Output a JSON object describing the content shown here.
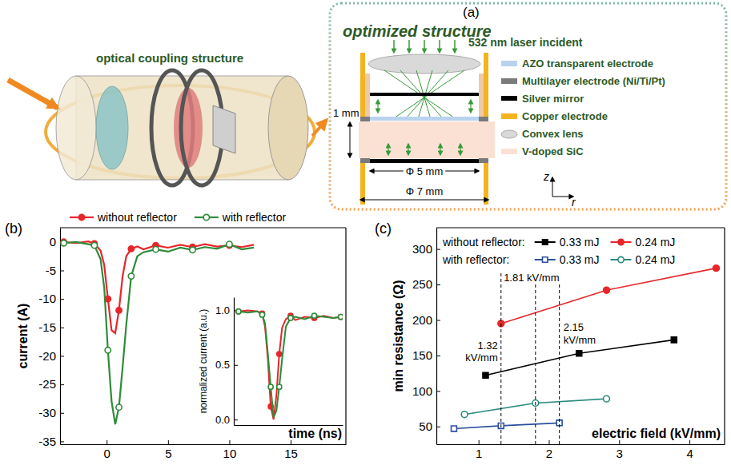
{
  "illustration": {
    "label": "optical coupling structure"
  },
  "diagram": {
    "label": "(a)",
    "title": "optimized structure",
    "laser_label": "532 nm laser incident",
    "legend": [
      {
        "label": "AZO transparent electrode",
        "color": "#b9d3ee"
      },
      {
        "label": "Multilayer electrode (Ni/Ti/Pt)",
        "color": "#7a7a7a"
      },
      {
        "label": "Silver mirror",
        "color": "#000000"
      },
      {
        "label": "Copper electrode",
        "color": "#f2b41f"
      },
      {
        "label": "Convex lens",
        "color": "#d9d9d9"
      },
      {
        "label": "V-doped SiC",
        "color": "#fbe1d4"
      }
    ],
    "thickness_label": "1 mm",
    "inner_diameter_label": "Φ 5 mm",
    "outer_diameter_label": "Φ 7 mm",
    "axis_labels": [
      "z",
      "r"
    ]
  },
  "chart_data": [
    {
      "type": "line",
      "panel": "(b)",
      "x_label": "time (ns)",
      "y_label": "current (A)",
      "xlim": [
        -3.8,
        19.5
      ],
      "xticks": [
        0,
        5,
        10,
        15
      ],
      "ylim": [
        -35.5,
        2.5
      ],
      "yticks": [
        0,
        -5,
        -10,
        -15,
        -20,
        -25,
        -30,
        -35
      ],
      "legend": "top",
      "series": [
        {
          "name": "without reflector",
          "color": "#e8262a",
          "marker": "circle",
          "x": [
            -3.5,
            -2.5,
            -1.5,
            -1,
            -0.5,
            -0.2,
            0.1,
            0.4,
            0.7,
            1,
            1.3,
            1.6,
            2,
            2.5,
            3,
            4,
            5,
            6,
            7,
            8,
            9,
            10,
            11,
            12
          ],
          "values": [
            0,
            -0.2,
            0.1,
            -0.3,
            -1.5,
            -4,
            -10,
            -15.5,
            -16,
            -12,
            -6,
            -2.5,
            -1.2,
            -0.8,
            -1.3,
            -0.6,
            -1,
            -0.5,
            -0.9,
            -0.4,
            -0.8,
            -0.6,
            -0.9,
            -0.5
          ]
        },
        {
          "name": "with reflector",
          "color": "#2e8b3a",
          "marker": "open-circle",
          "x": [
            -3.5,
            -2.5,
            -1.5,
            -1,
            -0.5,
            -0.2,
            0.1,
            0.4,
            0.7,
            1,
            1.3,
            1.6,
            2,
            2.5,
            3,
            4,
            5,
            6,
            7,
            8,
            9,
            10,
            11,
            12
          ],
          "values": [
            -0.2,
            0,
            -0.4,
            -0.6,
            -3,
            -8,
            -19,
            -28,
            -32,
            -29,
            -22,
            -14.5,
            -6,
            -2.5,
            -1.8,
            -1.3,
            -1.7,
            -1,
            -1.4,
            -0.9,
            -1.2,
            -0.4,
            -1.3,
            -1
          ]
        }
      ],
      "inset": {
        "type": "line",
        "y_label": "normalized current (a.u.)",
        "xlim": [
          -3.5,
          8
        ],
        "ylim": [
          -0.05,
          1.12
        ],
        "yticks": [
          {
            "value": 0,
            "label": "0.0"
          },
          {
            "value": 0.5,
            "label": "0.5"
          },
          {
            "value": 1,
            "label": "1.0"
          }
        ],
        "tick_labels": "y",
        "series": [
          {
            "color": "#e8262a",
            "marker": "circle",
            "x": [
              -3,
              -2,
              -1,
              -0.5,
              -0.2,
              0.1,
              0.4,
              0.7,
              1,
              1.3,
              1.6,
              2,
              2.5,
              3,
              4,
              5,
              6,
              7,
              7.8
            ],
            "values": [
              0.99,
              1,
              0.99,
              0.97,
              0.85,
              0.55,
              0.12,
              0,
              0.22,
              0.6,
              0.84,
              0.92,
              0.95,
              0.91,
              0.94,
              0.93,
              0.95,
              0.93,
              0.94
            ]
          },
          {
            "color": "#2e8b3a",
            "marker": "open-circle",
            "x": [
              -3,
              -2,
              -1,
              -0.5,
              -0.2,
              0.1,
              0.4,
              0.7,
              1,
              1.3,
              1.6,
              2,
              2.5,
              3,
              4,
              5,
              6,
              7,
              7.8
            ],
            "values": [
              0.99,
              0.98,
              0.99,
              0.96,
              0.88,
              0.6,
              0.3,
              0.02,
              0.08,
              0.3,
              0.55,
              0.85,
              0.93,
              0.94,
              0.92,
              0.95,
              0.94,
              0.93,
              0.94
            ]
          }
        ]
      }
    },
    {
      "type": "line",
      "panel": "(c)",
      "x_label": "electric field (kV/mm)",
      "y_label": "min resistance (Ω)",
      "xlim": [
        0.4,
        4.5
      ],
      "xticks": [
        1,
        2,
        3,
        4
      ],
      "ylim": [
        25,
        330
      ],
      "yticks": [
        50,
        100,
        150,
        200,
        250,
        300
      ],
      "legend": "top",
      "series": [
        {
          "name": "0.33 mJ",
          "group": "without reflector:",
          "color": "#000000",
          "marker": "square",
          "x": [
            1.1,
            2.43,
            3.78
          ],
          "values": [
            122,
            153,
            172
          ]
        },
        {
          "name": "0.24 mJ",
          "group": "without reflector:",
          "color": "#e8262a",
          "marker": "circle",
          "x": [
            1.32,
            2.82,
            4.38
          ],
          "values": [
            195,
            242,
            273
          ]
        },
        {
          "name": "0.33 mJ",
          "group": "with reflector:",
          "color": "#2b4f9e",
          "marker": "open-square",
          "x": [
            0.65,
            1.32,
            2.15
          ],
          "values": [
            47,
            51,
            55
          ]
        },
        {
          "name": "0.24 mJ",
          "group": "with reflector:",
          "color": "#2a8c7e",
          "marker": "open-circle",
          "x": [
            0.8,
            1.81,
            2.82
          ],
          "values": [
            67,
            83,
            89
          ]
        }
      ],
      "annotations": [
        {
          "value": 1.32,
          "label": "1.32 kV/mm"
        },
        {
          "value": 1.81,
          "label": "1.81 kV/mm"
        },
        {
          "value": 2.15,
          "label": "2.15 kV/mm"
        }
      ]
    }
  ]
}
